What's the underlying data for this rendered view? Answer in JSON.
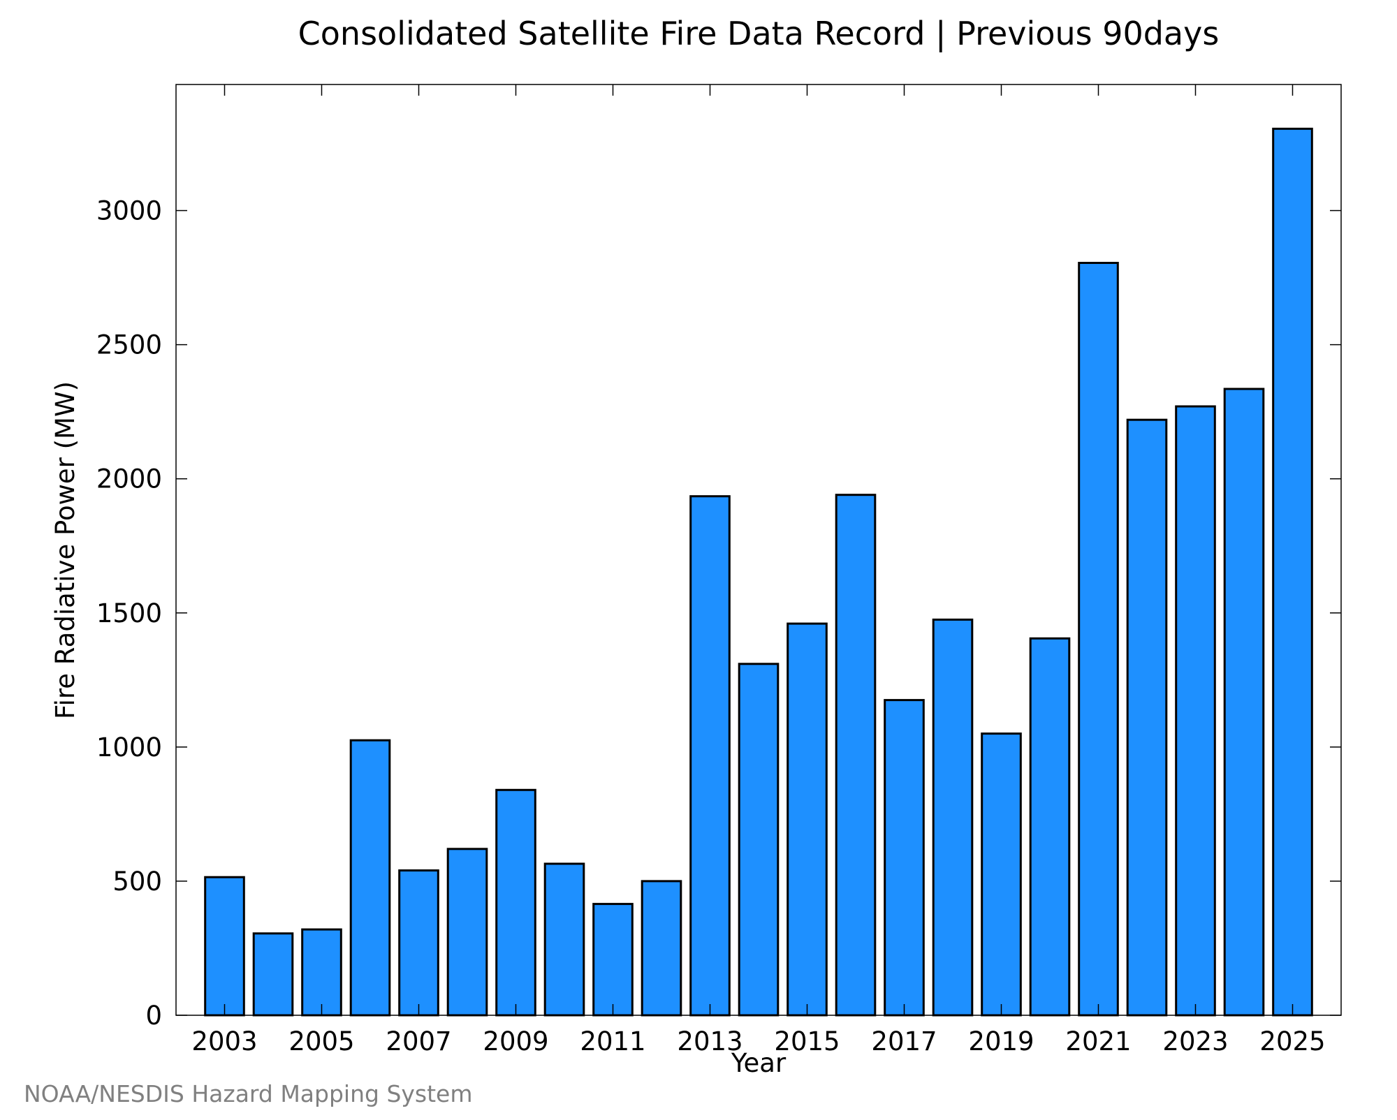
{
  "chart_data": {
    "type": "bar",
    "title": "Consolidated Satellite Fire Data Record | Previous 90days",
    "xlabel": "Year",
    "ylabel": "Fire Radiative Power (MW)",
    "categories": [
      2003,
      2004,
      2005,
      2006,
      2007,
      2008,
      2009,
      2010,
      2011,
      2012,
      2013,
      2014,
      2015,
      2016,
      2017,
      2018,
      2019,
      2020,
      2021,
      2022,
      2023,
      2024,
      2025
    ],
    "values": [
      515,
      305,
      320,
      1025,
      540,
      620,
      840,
      565,
      415,
      500,
      1935,
      1310,
      1460,
      1940,
      1175,
      1475,
      1050,
      1405,
      2805,
      2220,
      2270,
      2335,
      3305
    ],
    "xticks": [
      "2003",
      "2005",
      "2007",
      "2009",
      "2011",
      "2013",
      "2015",
      "2017",
      "2019",
      "2021",
      "2023",
      "2025"
    ],
    "yticks": [
      "0",
      "500",
      "1000",
      "1500",
      "2000",
      "2500",
      "3000"
    ],
    "ylim": [
      0,
      3470
    ],
    "xlim": [
      2002,
      2026
    ],
    "bar_color": "#1e90ff",
    "edge_color": "#000000",
    "grid": false,
    "legend": "none"
  },
  "source": "NOAA/NESDIS Hazard Mapping System"
}
